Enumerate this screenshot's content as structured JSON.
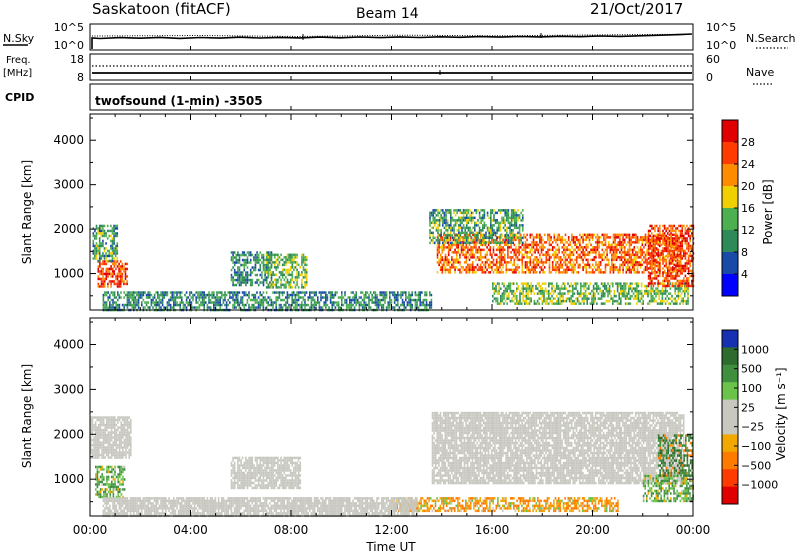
{
  "header": {
    "title": "Saskatoon (fitACF)",
    "beam": "Beam 14",
    "date": "21/Oct/2017"
  },
  "noise_panel": {
    "left_label": "N.Sky",
    "left_ticks": [
      "10^5",
      "10^0"
    ],
    "right_ticks": [
      "10^5",
      "10^0"
    ],
    "right_label": "N.Search"
  },
  "freq_panel": {
    "left_label_1": "Freq.",
    "left_label_2": "[MHz]",
    "left_ticks": [
      "18",
      "8"
    ],
    "right_ticks": [
      "60",
      "0"
    ],
    "right_label": "Nave"
  },
  "cpid_panel": {
    "label": "CPID",
    "program": "twofsound (1-min) -3505"
  },
  "colors": {
    "scale": [
      "#0000ff",
      "#1a4aa8",
      "#2e8b57",
      "#4caf50",
      "#f0d000",
      "#ff8c00",
      "#ff3b00",
      "#e00000"
    ],
    "velocity_scale": [
      "#1530b0",
      "#2e6b2e",
      "#3f8f3f",
      "#6bc34a",
      "#c8c8c0",
      "#c8c8c0",
      "#f2a800",
      "#ff7b00",
      "#ff3b00",
      "#e00000"
    ],
    "ground_scatter": "#c8c8c0"
  },
  "chart_data": [
    {
      "type": "heatmap",
      "name": "power",
      "ylabel": "Slant Range [km]",
      "yticks": [
        1000,
        2000,
        3000,
        4000
      ],
      "ylim": [
        180,
        4590
      ],
      "xlim": [
        0,
        24
      ],
      "colorbar": {
        "label": "Power [dB]",
        "ticks": [
          "28",
          "24",
          "20",
          "16",
          "12",
          "8",
          "4"
        ]
      },
      "regions": [
        {
          "label": "echo",
          "x": [
            0.3,
            1.5
          ],
          "y": [
            700,
            1300
          ],
          "value": 26
        },
        {
          "label": "echo",
          "x": [
            0.1,
            1.1
          ],
          "y": [
            1300,
            2100
          ],
          "value": 12
        },
        {
          "label": "echo",
          "x": [
            5.6,
            7.2
          ],
          "y": [
            750,
            1500
          ],
          "value": 10
        },
        {
          "label": "echo",
          "x": [
            7.0,
            8.6
          ],
          "y": [
            700,
            1450
          ],
          "value": 14
        },
        {
          "label": "echo",
          "x": [
            13.8,
            23.5
          ],
          "y": [
            1000,
            1900
          ],
          "value": 24
        },
        {
          "label": "echo",
          "x": [
            13.5,
            17.2
          ],
          "y": [
            1700,
            2450
          ],
          "value": 12
        },
        {
          "label": "echo",
          "x": [
            16.0,
            23.8
          ],
          "y": [
            300,
            800
          ],
          "value": 14
        },
        {
          "label": "echo",
          "x": [
            22.2,
            24.0
          ],
          "y": [
            700,
            2100
          ],
          "value": 26
        },
        {
          "label": "echo",
          "x": [
            0.5,
            13.6
          ],
          "y": [
            180,
            600
          ],
          "value": 10
        }
      ]
    },
    {
      "type": "heatmap",
      "name": "velocity",
      "ylabel": "Slant Range [km]",
      "xlabel": "Time UT",
      "yticks": [
        1000,
        2000,
        3000,
        4000
      ],
      "ylim": [
        180,
        4590
      ],
      "xlim": [
        0,
        24
      ],
      "xtick_labels": [
        "00:00",
        "04:00",
        "08:00",
        "12:00",
        "16:00",
        "20:00",
        "00:00"
      ],
      "colorbar": {
        "label": "Velocity [m s⁻¹]",
        "ticks": [
          "1000",
          "500",
          "100",
          "25",
          "−25",
          "−100",
          "−500",
          "−1000"
        ]
      },
      "regions": [
        {
          "label": "ground scatter",
          "x": [
            0.0,
            1.6
          ],
          "y": [
            1500,
            2400
          ],
          "value": 0
        },
        {
          "label": "echo",
          "x": [
            0.2,
            1.4
          ],
          "y": [
            600,
            1300
          ],
          "value": 100
        },
        {
          "label": "ground scatter",
          "x": [
            5.6,
            8.4
          ],
          "y": [
            800,
            1500
          ],
          "value": 0
        },
        {
          "label": "ground scatter",
          "x": [
            13.6,
            23.6
          ],
          "y": [
            900,
            2500
          ],
          "value": 0
        },
        {
          "label": "echo",
          "x": [
            22.0,
            24.0
          ],
          "y": [
            500,
            1100
          ],
          "value": 100
        },
        {
          "label": "echo",
          "x": [
            22.6,
            24.0
          ],
          "y": [
            1100,
            2000
          ],
          "value": 500
        },
        {
          "label": "echo",
          "x": [
            12.0,
            21.0
          ],
          "y": [
            300,
            600
          ],
          "value": -100
        },
        {
          "label": "ground scatter",
          "x": [
            0.5,
            13.0
          ],
          "y": [
            180,
            600
          ],
          "value": 0
        }
      ]
    }
  ]
}
